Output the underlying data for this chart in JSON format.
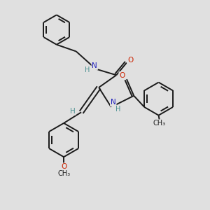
{
  "background_color": "#e0e0e0",
  "bond_color": "#1a1a1a",
  "atom_colors": {
    "N": "#2020bb",
    "O": "#cc2200",
    "H": "#4a9090"
  },
  "figsize": [
    3.0,
    3.0
  ],
  "dpi": 100,
  "xlim": [
    0,
    10
  ],
  "ylim": [
    0,
    10
  ]
}
